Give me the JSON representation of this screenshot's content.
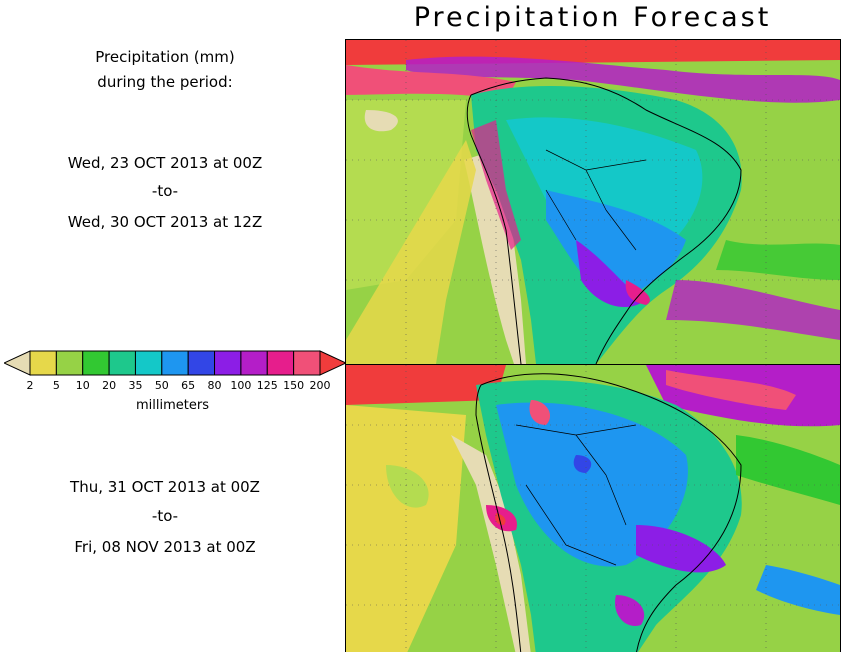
{
  "title": "Precipitation Forecast",
  "header_text": {
    "line1": "Precipitation (mm)",
    "line2": "during the period:"
  },
  "period1": {
    "start": "Wed, 23 OCT 2013 at 00Z",
    "sep": "-to-",
    "end": "Wed, 30 OCT 2013 at 12Z"
  },
  "period2": {
    "start": "Thu, 31 OCT 2013 at 00Z",
    "sep": "-to-",
    "end": "Fri, 08 NOV 2013 at 00Z"
  },
  "legend": {
    "unit": "millimeters",
    "ticks": [
      "2",
      "5",
      "10",
      "20",
      "35",
      "50",
      "65",
      "80",
      "100",
      "125",
      "150",
      "200"
    ],
    "colors": [
      "#e6dcb4",
      "#e6d84a",
      "#96d246",
      "#32c832",
      "#1ec88c",
      "#14c8c8",
      "#1e96f0",
      "#3246e6",
      "#8c1ee6",
      "#b41ec8",
      "#e61e8c",
      "#f05078",
      "#f03c3c"
    ]
  },
  "map_icons": [
    "continent-outline-icon",
    "country-border-icon"
  ]
}
